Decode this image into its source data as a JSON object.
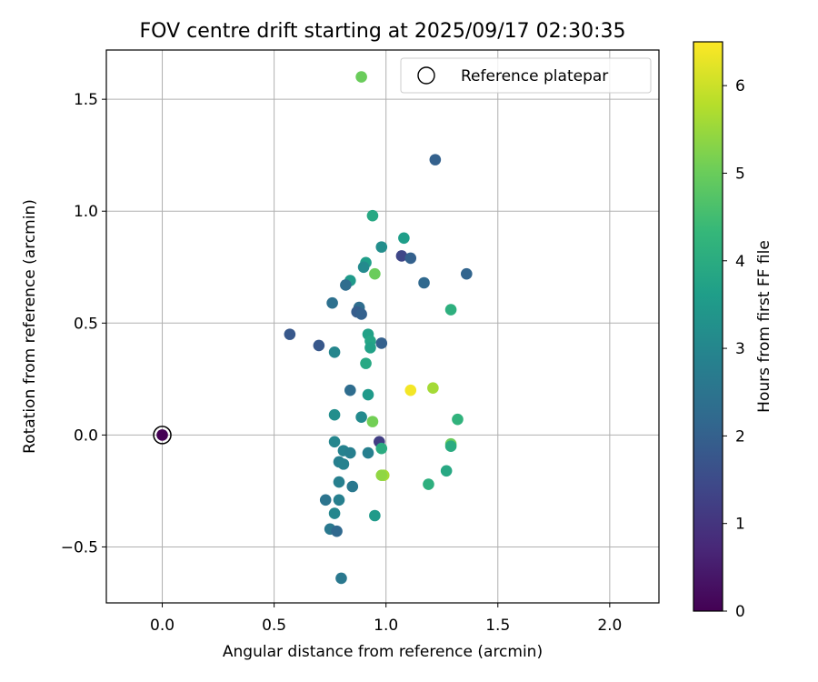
{
  "chart_data": {
    "type": "scatter",
    "title": "FOV centre drift starting at 2025/09/17 02:30:35",
    "xlabel": "Angular distance from reference (arcmin)",
    "ylabel": "Rotation from reference (arcmin)",
    "xlim": [
      -0.25,
      2.22
    ],
    "ylim": [
      -0.75,
      1.72
    ],
    "xticks": [
      0.0,
      0.5,
      1.0,
      1.5,
      2.0
    ],
    "xtick_labels": [
      "0.0",
      "0.5",
      "1.0",
      "1.5",
      "2.0"
    ],
    "yticks": [
      -0.5,
      0.0,
      0.5,
      1.0,
      1.5
    ],
    "ytick_labels": [
      "−0.5",
      "0.0",
      "0.5",
      "1.0",
      "1.5"
    ],
    "grid": true,
    "legend": {
      "position": "top-right",
      "entries": [
        "Reference platepar"
      ]
    },
    "colorbar": {
      "label": "Hours from first FF file",
      "range": [
        0,
        6.5
      ],
      "ticks": [
        0,
        1,
        2,
        3,
        4,
        5,
        6
      ],
      "tick_labels": [
        "0",
        "1",
        "2",
        "3",
        "4",
        "5",
        "6"
      ],
      "colormap": "viridis",
      "colors": [
        "#440154",
        "#482878",
        "#3e4989",
        "#31688e",
        "#26828e",
        "#1f9e89",
        "#35b779",
        "#6ece58",
        "#b5de2b",
        "#fde725"
      ]
    },
    "reference": {
      "x": 0.0,
      "y": 0.0,
      "hours": 0.0,
      "label": "Reference platepar"
    },
    "points": [
      {
        "x": 0.89,
        "y": 1.6,
        "h": 5.0
      },
      {
        "x": 1.22,
        "y": 1.23,
        "h": 2.0
      },
      {
        "x": 0.94,
        "y": 0.98,
        "h": 3.9
      },
      {
        "x": 1.08,
        "y": 0.88,
        "h": 3.6
      },
      {
        "x": 0.98,
        "y": 0.84,
        "h": 3.2
      },
      {
        "x": 1.07,
        "y": 0.8,
        "h": 1.4
      },
      {
        "x": 1.11,
        "y": 0.79,
        "h": 2.0
      },
      {
        "x": 0.91,
        "y": 0.77,
        "h": 3.6
      },
      {
        "x": 0.9,
        "y": 0.75,
        "h": 3.1
      },
      {
        "x": 1.36,
        "y": 0.72,
        "h": 2.1
      },
      {
        "x": 0.95,
        "y": 0.72,
        "h": 5.0
      },
      {
        "x": 0.84,
        "y": 0.69,
        "h": 3.5
      },
      {
        "x": 1.17,
        "y": 0.68,
        "h": 2.2
      },
      {
        "x": 0.82,
        "y": 0.67,
        "h": 2.3
      },
      {
        "x": 0.76,
        "y": 0.59,
        "h": 2.4
      },
      {
        "x": 0.88,
        "y": 0.57,
        "h": 2.3
      },
      {
        "x": 1.29,
        "y": 0.56,
        "h": 4.1
      },
      {
        "x": 0.87,
        "y": 0.55,
        "h": 1.9
      },
      {
        "x": 0.89,
        "y": 0.54,
        "h": 2.0
      },
      {
        "x": 0.57,
        "y": 0.45,
        "h": 1.8
      },
      {
        "x": 0.92,
        "y": 0.45,
        "h": 3.7
      },
      {
        "x": 0.93,
        "y": 0.42,
        "h": 3.8
      },
      {
        "x": 0.98,
        "y": 0.41,
        "h": 2.0
      },
      {
        "x": 0.7,
        "y": 0.4,
        "h": 1.8
      },
      {
        "x": 0.93,
        "y": 0.39,
        "h": 3.7
      },
      {
        "x": 0.77,
        "y": 0.37,
        "h": 3.0
      },
      {
        "x": 0.91,
        "y": 0.32,
        "h": 3.9
      },
      {
        "x": 1.21,
        "y": 0.21,
        "h": 5.6
      },
      {
        "x": 1.11,
        "y": 0.2,
        "h": 6.4
      },
      {
        "x": 0.84,
        "y": 0.2,
        "h": 2.3
      },
      {
        "x": 0.92,
        "y": 0.18,
        "h": 3.5
      },
      {
        "x": 0.77,
        "y": 0.09,
        "h": 3.2
      },
      {
        "x": 0.89,
        "y": 0.08,
        "h": 3.1
      },
      {
        "x": 1.32,
        "y": 0.07,
        "h": 4.2
      },
      {
        "x": 0.94,
        "y": 0.06,
        "h": 5.1
      },
      {
        "x": 0.97,
        "y": -0.03,
        "h": 1.2
      },
      {
        "x": 0.77,
        "y": -0.03,
        "h": 3.0
      },
      {
        "x": 1.29,
        "y": -0.04,
        "h": 5.0
      },
      {
        "x": 1.29,
        "y": -0.05,
        "h": 4.0
      },
      {
        "x": 0.98,
        "y": -0.06,
        "h": 4.0
      },
      {
        "x": 0.81,
        "y": -0.07,
        "h": 2.9
      },
      {
        "x": 0.92,
        "y": -0.08,
        "h": 2.8
      },
      {
        "x": 0.84,
        "y": -0.08,
        "h": 2.8
      },
      {
        "x": 0.79,
        "y": -0.12,
        "h": 2.8
      },
      {
        "x": 0.81,
        "y": -0.13,
        "h": 2.9
      },
      {
        "x": 1.27,
        "y": -0.16,
        "h": 3.9
      },
      {
        "x": 0.99,
        "y": -0.18,
        "h": 5.6
      },
      {
        "x": 0.98,
        "y": -0.18,
        "h": 5.4
      },
      {
        "x": 0.79,
        "y": -0.21,
        "h": 2.8
      },
      {
        "x": 1.19,
        "y": -0.22,
        "h": 4.1
      },
      {
        "x": 0.85,
        "y": -0.23,
        "h": 2.6
      },
      {
        "x": 0.73,
        "y": -0.29,
        "h": 2.5
      },
      {
        "x": 0.79,
        "y": -0.29,
        "h": 2.8
      },
      {
        "x": 0.77,
        "y": -0.35,
        "h": 3.0
      },
      {
        "x": 0.95,
        "y": -0.36,
        "h": 3.5
      },
      {
        "x": 0.75,
        "y": -0.42,
        "h": 2.6
      },
      {
        "x": 0.78,
        "y": -0.43,
        "h": 2.2
      },
      {
        "x": 0.8,
        "y": -0.64,
        "h": 2.6
      }
    ]
  }
}
